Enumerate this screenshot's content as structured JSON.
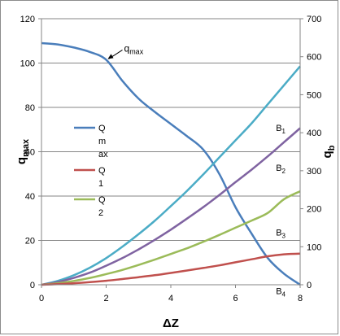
{
  "chart_data": {
    "type": "line",
    "x": [
      0,
      0.5,
      1,
      1.5,
      2,
      2.5,
      3,
      3.5,
      4,
      4.5,
      5,
      5.5,
      6,
      6.5,
      7,
      7.5,
      8
    ],
    "xlabel": "ΔZ",
    "xlim": [
      0,
      8
    ],
    "x_ticks": [
      "0",
      "2",
      "4",
      "6",
      "8"
    ],
    "y_left": {
      "label": "q",
      "label_sub": "max",
      "lim": [
        0,
        120
      ],
      "ticks": [
        "0",
        "20",
        "40",
        "60",
        "80",
        "100",
        "120"
      ]
    },
    "y_right": {
      "label": "q",
      "label_sub": "b",
      "lim": [
        0,
        700
      ],
      "ticks": [
        "0",
        "100",
        "200",
        "300",
        "400",
        "500",
        "600",
        "700"
      ]
    },
    "grid": "horizontal",
    "series": [
      {
        "name": "Q max",
        "axis": "left",
        "color": "#4a7ebb",
        "values": [
          109,
          108.4,
          107,
          105,
          101.5,
          92,
          84,
          78,
          72.5,
          67,
          61,
          50,
          35,
          23,
          12,
          5,
          0
        ]
      },
      {
        "axis": "right",
        "color": "#4bacc6",
        "values": [
          0,
          10,
          25,
          45,
          70,
          100,
          133,
          168,
          207,
          247,
          290,
          335,
          380,
          425,
          475,
          525,
          575
        ]
      },
      {
        "axis": "right",
        "color": "#7f63a1",
        "values": [
          0,
          7,
          18,
          32,
          50,
          70,
          93,
          118,
          145,
          174,
          204,
          236,
          270,
          303,
          338,
          375,
          412
        ]
      },
      {
        "name": "Q 2",
        "axis": "right",
        "color": "#9bbb59",
        "values": [
          0,
          4,
          10,
          18,
          28,
          39,
          52,
          66,
          81,
          96,
          113,
          131,
          150,
          169,
          189,
          225,
          246
        ]
      },
      {
        "name": "Q 1",
        "axis": "right",
        "color": "#c0504d",
        "values": [
          0,
          1.5,
          4,
          7,
          10.5,
          15,
          20,
          25,
          31,
          37.5,
          44,
          51,
          59,
          67,
          75,
          80,
          82
        ]
      }
    ],
    "legend": {
      "placement": "center-left",
      "entries": [
        {
          "lines": [
            "Q",
            "m",
            "ax"
          ],
          "color": "#4a7ebb"
        },
        {
          "lines": [
            "Q",
            "1"
          ],
          "color": "#c0504d"
        },
        {
          "lines": [
            "Q",
            "2"
          ],
          "color": "#9bbb59"
        }
      ]
    },
    "annotations": [
      {
        "text": "q",
        "sub": "max",
        "x": 2.0,
        "y_left": 101.5,
        "arrow": true
      },
      {
        "text": "B",
        "sub": "1",
        "x": 7.2,
        "y_right": 405
      },
      {
        "text": "B",
        "sub": "2",
        "x": 7.2,
        "y_right": 300
      },
      {
        "text": "B",
        "sub": "3",
        "x": 7.2,
        "y_right": 130
      },
      {
        "text": "B",
        "sub": "4",
        "x": 7.2,
        "y_right": -25
      }
    ]
  }
}
